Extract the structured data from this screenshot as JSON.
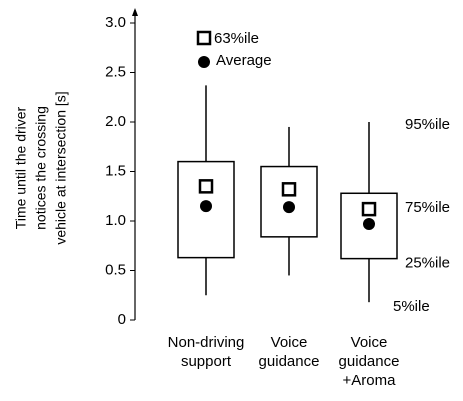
{
  "chart_data": {
    "type": "box",
    "y_label_lines": [
      "Time until the driver",
      "notices the crossing",
      "vehicle at intersection [s]"
    ],
    "categories": [
      [
        "Non-driving",
        "support"
      ],
      [
        "Voice",
        "guidance"
      ],
      [
        "Voice",
        "guidance",
        "+Aroma"
      ]
    ],
    "boxes": [
      {
        "whisker_low": 0.25,
        "q1": 0.63,
        "q3": 1.6,
        "whisker_high": 2.37,
        "p63": 1.35,
        "mean": 1.15
      },
      {
        "whisker_low": 0.45,
        "q1": 0.84,
        "q3": 1.55,
        "whisker_high": 1.95,
        "p63": 1.32,
        "mean": 1.14
      },
      {
        "whisker_low": 0.18,
        "q1": 0.62,
        "q3": 1.28,
        "whisker_high": 2.0,
        "p63": 1.12,
        "mean": 0.97
      }
    ],
    "legend": {
      "p63": "63%ile",
      "mean": "Average"
    },
    "annotations": {
      "whisker_high": "95%ile",
      "q3": "75%ile",
      "q1": "25%ile",
      "whisker_low": "5%ile"
    },
    "ylim": [
      0,
      3
    ],
    "yticks": [
      0,
      0.5,
      {
        "value": 1,
        "label": "1.0"
      },
      1.5,
      {
        "value": 2,
        "label": "2.0"
      },
      2.5,
      {
        "value": 3,
        "label": "3.0"
      }
    ]
  }
}
